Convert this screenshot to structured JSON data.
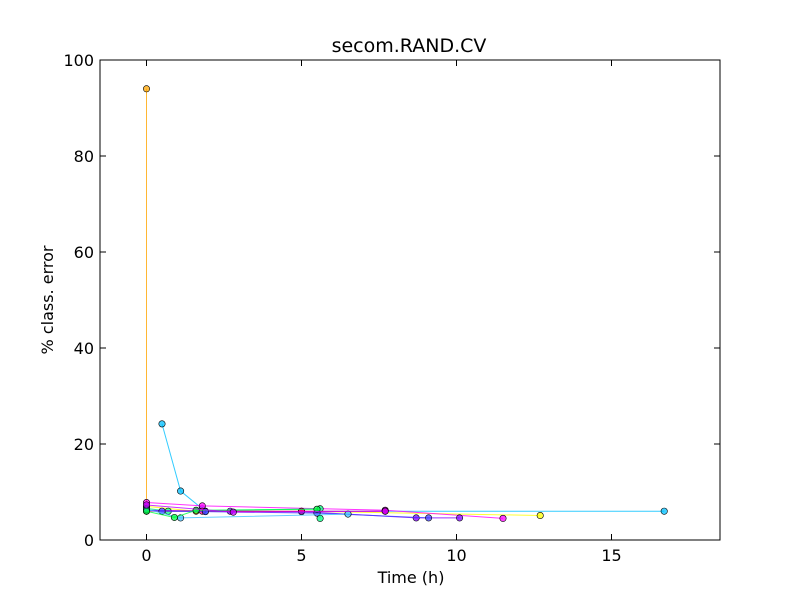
{
  "chart_data": {
    "type": "line",
    "title": "secom.RAND.CV",
    "xlabel": "Time (h)",
    "ylabel": "% class. error",
    "xlim": [
      -1.5,
      18.5
    ],
    "ylim": [
      0,
      100
    ],
    "xticks": [
      0,
      5,
      10,
      15
    ],
    "yticks": [
      0,
      20,
      40,
      60,
      80,
      100
    ],
    "grid": false,
    "legend": "none",
    "series": [
      {
        "color": "#ffa500",
        "values": [
          [
            0.0,
            94.0
          ],
          [
            0.0,
            6.3
          ]
        ]
      },
      {
        "color": "#00bfff",
        "values": [
          [
            0.5,
            24.2
          ],
          [
            1.1,
            10.2
          ],
          [
            1.8,
            6.5
          ],
          [
            1.9,
            6.0
          ],
          [
            16.7,
            6.0
          ]
        ]
      },
      {
        "color": "#ffff00",
        "values": [
          [
            0.0,
            7.0
          ],
          [
            1.6,
            6.0
          ],
          [
            5.0,
            6.0
          ],
          [
            12.7,
            5.1
          ]
        ]
      },
      {
        "color": "#ff00ff",
        "values": [
          [
            0.0,
            7.8
          ],
          [
            1.8,
            7.1
          ],
          [
            7.7,
            6.2
          ],
          [
            11.5,
            4.5
          ]
        ]
      },
      {
        "color": "#00ff80",
        "values": [
          [
            0.0,
            6.6
          ],
          [
            0.7,
            6.0
          ],
          [
            5.6,
            6.5
          ],
          [
            5.6,
            4.5
          ]
        ]
      },
      {
        "color": "#8000ff",
        "values": [
          [
            0.0,
            6.2
          ],
          [
            2.7,
            6.0
          ],
          [
            5.0,
            5.9
          ],
          [
            8.7,
            4.6
          ],
          [
            10.1,
            4.6
          ]
        ]
      },
      {
        "color": "#ff0080",
        "values": [
          [
            0.0,
            6.0
          ],
          [
            1.8,
            6.0
          ],
          [
            5.0,
            6.0
          ],
          [
            7.7,
            6.0
          ]
        ]
      },
      {
        "color": "#4040ff",
        "values": [
          [
            0.0,
            6.2
          ],
          [
            0.5,
            6.0
          ],
          [
            1.9,
            5.9
          ],
          [
            5.5,
            5.6
          ],
          [
            9.1,
            4.6
          ]
        ]
      },
      {
        "color": "#40c0ff",
        "values": [
          [
            0.0,
            6.4
          ],
          [
            1.1,
            4.6
          ],
          [
            6.5,
            5.4
          ]
        ]
      },
      {
        "color": "#00ff40",
        "values": [
          [
            0.0,
            6.0
          ],
          [
            0.9,
            4.7
          ],
          [
            1.6,
            6.2
          ],
          [
            5.5,
            6.4
          ]
        ]
      },
      {
        "color": "#c000ff",
        "values": [
          [
            0.0,
            7.3
          ],
          [
            2.8,
            5.8
          ],
          [
            7.7,
            6.0
          ]
        ]
      }
    ]
  }
}
